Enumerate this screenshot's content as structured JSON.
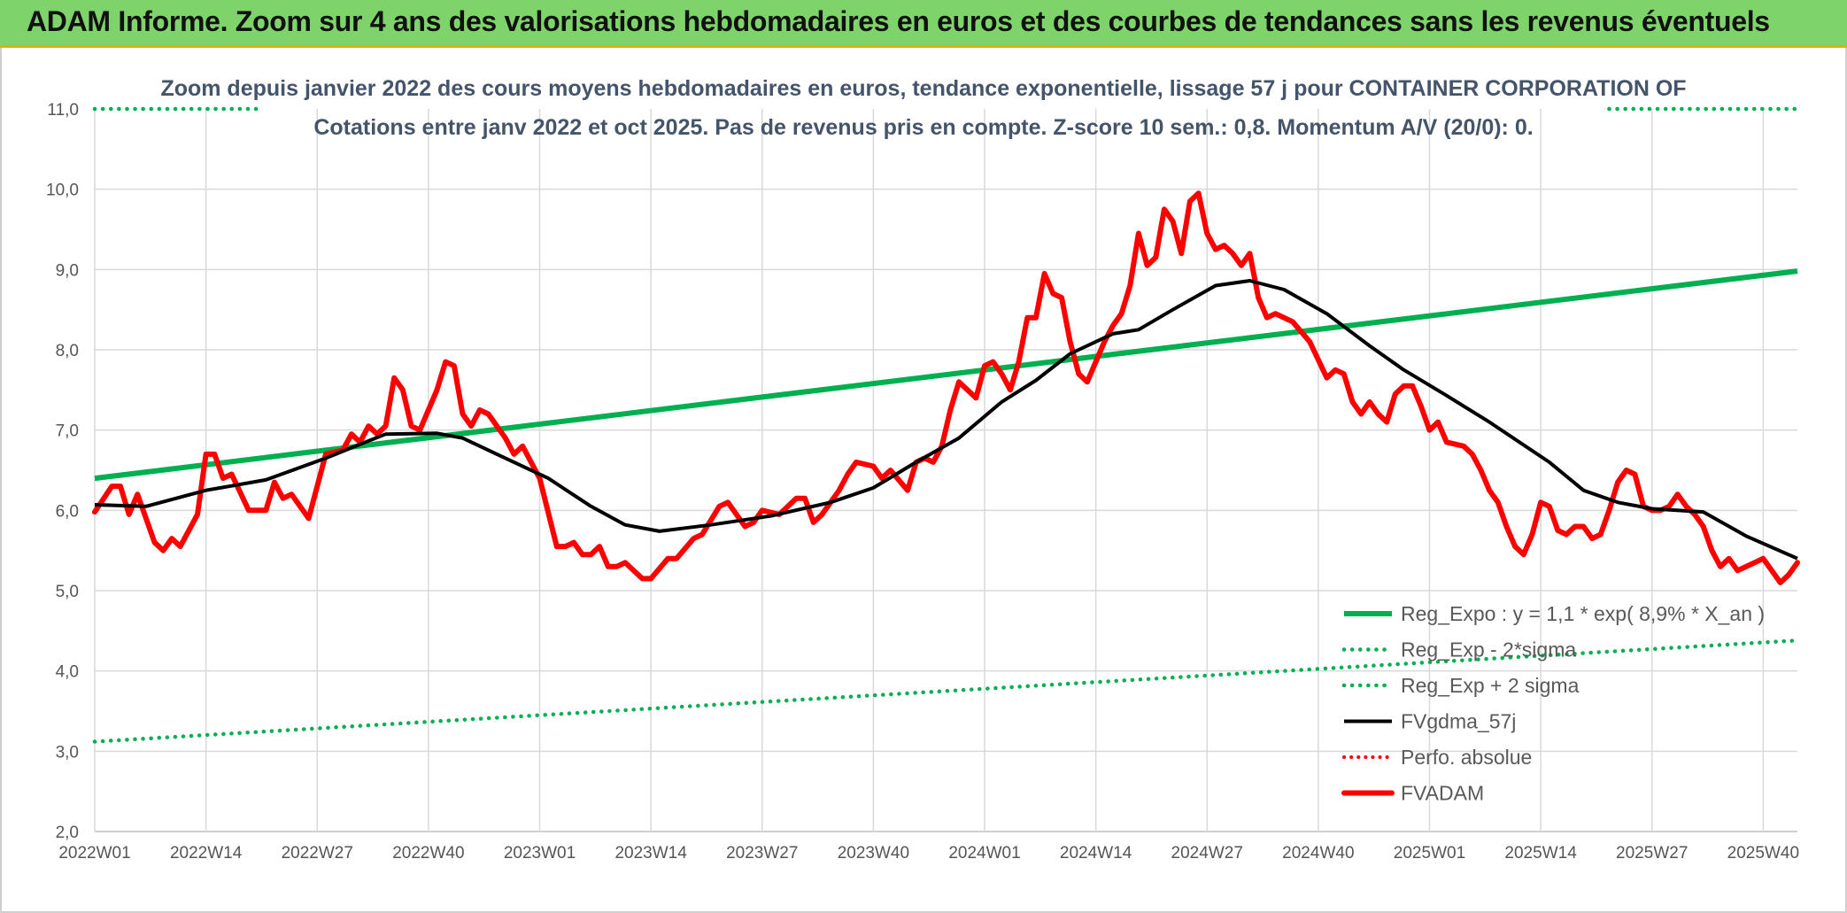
{
  "banner": {
    "title": "ADAM Informe. Zoom sur 4 ans des valorisations hebdomadaires en euros et des courbes de tendances sans les revenus éventuels"
  },
  "chart_data": {
    "type": "line",
    "title": "Zoom depuis janvier 2022 des cours moyens hebdomadaires en euros, tendance exponentielle, lissage 57 j pour CONTAINER CORPORATION OF",
    "subtitle": "Cotations entre janv 2022 et oct 2025. Pas de revenus pris en compte. Z-score 10 sem.: 0,8. Momentum A/V (20/0): 0.",
    "ylim": [
      2.0,
      11.0
    ],
    "ytick_labels": [
      "2,0",
      "3,0",
      "4,0",
      "5,0",
      "6,0",
      "7,0",
      "8,0",
      "9,0",
      "10,0",
      "11,0"
    ],
    "xtick_labels": [
      "2022W01",
      "2022W14",
      "2022W27",
      "2022W40",
      "2023W01",
      "2023W14",
      "2023W27",
      "2023W40",
      "2024W01",
      "2024W14",
      "2024W27",
      "2024W40",
      "2025W01",
      "2025W14",
      "2025W27",
      "2025W40"
    ],
    "x_week_range": [
      0,
      199
    ],
    "x_tick_step_weeks": 13,
    "colors": {
      "green": "#00b050",
      "black": "#000000",
      "red": "#ff0000",
      "grid": "#d9d9d9"
    },
    "series": [
      {
        "name": "Reg_Expo : y = 1,1 * exp( 8,9% *  X_an )",
        "style": "solid-green",
        "points": [
          [
            0,
            6.4
          ],
          [
            199,
            8.98
          ]
        ]
      },
      {
        "name": "Reg_Exp - 2*sigma",
        "style": "dotted-green",
        "points": [
          [
            0,
            3.12
          ],
          [
            199,
            4.38
          ]
        ]
      },
      {
        "name": "Reg_Exp + 2 sigma",
        "style": "dotted-green",
        "points": [
          [
            0,
            11.0
          ],
          [
            199,
            11.0
          ]
        ]
      },
      {
        "name": "FVgdma_57j",
        "style": "solid-black",
        "points": [
          [
            0,
            6.07
          ],
          [
            6,
            6.05
          ],
          [
            13,
            6.25
          ],
          [
            20,
            6.38
          ],
          [
            27,
            6.65
          ],
          [
            30,
            6.78
          ],
          [
            34,
            6.95
          ],
          [
            40,
            6.96
          ],
          [
            43,
            6.9
          ],
          [
            47,
            6.7
          ],
          [
            53,
            6.4
          ],
          [
            58,
            6.05
          ],
          [
            62,
            5.82
          ],
          [
            66,
            5.74
          ],
          [
            72,
            5.82
          ],
          [
            79,
            5.93
          ],
          [
            86,
            6.1
          ],
          [
            91,
            6.28
          ],
          [
            96,
            6.6
          ],
          [
            101,
            6.9
          ],
          [
            106,
            7.35
          ],
          [
            110,
            7.62
          ],
          [
            114,
            7.95
          ],
          [
            119,
            8.2
          ],
          [
            122,
            8.25
          ],
          [
            126,
            8.5
          ],
          [
            131,
            8.8
          ],
          [
            135,
            8.86
          ],
          [
            139,
            8.75
          ],
          [
            144,
            8.45
          ],
          [
            149,
            8.05
          ],
          [
            153,
            7.75
          ],
          [
            158,
            7.43
          ],
          [
            163,
            7.1
          ],
          [
            170,
            6.6
          ],
          [
            174,
            6.25
          ],
          [
            178,
            6.1
          ],
          [
            182,
            6.02
          ],
          [
            188,
            5.98
          ],
          [
            193,
            5.68
          ],
          [
            199,
            5.4
          ]
        ]
      },
      {
        "name": "Perfo. absolue",
        "style": "dotted-red",
        "points": []
      },
      {
        "name": "FVADAM",
        "style": "solid-red",
        "points": [
          [
            0,
            5.98
          ],
          [
            2,
            6.3
          ],
          [
            3,
            6.3
          ],
          [
            4,
            5.95
          ],
          [
            5,
            6.2
          ],
          [
            7,
            5.6
          ],
          [
            8,
            5.5
          ],
          [
            9,
            5.65
          ],
          [
            10,
            5.55
          ],
          [
            12,
            5.95
          ],
          [
            13,
            6.7
          ],
          [
            14,
            6.7
          ],
          [
            15,
            6.4
          ],
          [
            16,
            6.45
          ],
          [
            18,
            6.0
          ],
          [
            20,
            6.0
          ],
          [
            21,
            6.35
          ],
          [
            22,
            6.15
          ],
          [
            23,
            6.2
          ],
          [
            25,
            5.9
          ],
          [
            27,
            6.7
          ],
          [
            29,
            6.75
          ],
          [
            30,
            6.95
          ],
          [
            31,
            6.85
          ],
          [
            32,
            7.05
          ],
          [
            33,
            6.95
          ],
          [
            34,
            7.05
          ],
          [
            35,
            7.65
          ],
          [
            36,
            7.5
          ],
          [
            37,
            7.05
          ],
          [
            38,
            7.0
          ],
          [
            40,
            7.5
          ],
          [
            41,
            7.85
          ],
          [
            42,
            7.8
          ],
          [
            43,
            7.2
          ],
          [
            44,
            7.05
          ],
          [
            45,
            7.25
          ],
          [
            46,
            7.2
          ],
          [
            48,
            6.9
          ],
          [
            49,
            6.7
          ],
          [
            50,
            6.8
          ],
          [
            52,
            6.4
          ],
          [
            54,
            5.55
          ],
          [
            55,
            5.55
          ],
          [
            56,
            5.6
          ],
          [
            57,
            5.45
          ],
          [
            58,
            5.45
          ],
          [
            59,
            5.55
          ],
          [
            60,
            5.3
          ],
          [
            61,
            5.3
          ],
          [
            62,
            5.35
          ],
          [
            64,
            5.15
          ],
          [
            65,
            5.15
          ],
          [
            67,
            5.4
          ],
          [
            68,
            5.4
          ],
          [
            70,
            5.65
          ],
          [
            71,
            5.7
          ],
          [
            73,
            6.05
          ],
          [
            74,
            6.1
          ],
          [
            76,
            5.8
          ],
          [
            77,
            5.85
          ],
          [
            78,
            6.0
          ],
          [
            80,
            5.95
          ],
          [
            82,
            6.15
          ],
          [
            83,
            6.15
          ],
          [
            84,
            5.85
          ],
          [
            85,
            5.95
          ],
          [
            87,
            6.25
          ],
          [
            88,
            6.45
          ],
          [
            89,
            6.6
          ],
          [
            91,
            6.55
          ],
          [
            92,
            6.4
          ],
          [
            93,
            6.5
          ],
          [
            95,
            6.25
          ],
          [
            96,
            6.6
          ],
          [
            97,
            6.65
          ],
          [
            98,
            6.6
          ],
          [
            99,
            6.8
          ],
          [
            100,
            7.25
          ],
          [
            101,
            7.6
          ],
          [
            102,
            7.5
          ],
          [
            103,
            7.4
          ],
          [
            104,
            7.8
          ],
          [
            105,
            7.85
          ],
          [
            106,
            7.7
          ],
          [
            107,
            7.5
          ],
          [
            108,
            7.85
          ],
          [
            109,
            8.4
          ],
          [
            110,
            8.4
          ],
          [
            111,
            8.95
          ],
          [
            112,
            8.7
          ],
          [
            113,
            8.65
          ],
          [
            114,
            8.1
          ],
          [
            115,
            7.7
          ],
          [
            116,
            7.6
          ],
          [
            117,
            7.85
          ],
          [
            118,
            8.1
          ],
          [
            119,
            8.3
          ],
          [
            120,
            8.45
          ],
          [
            121,
            8.8
          ],
          [
            122,
            9.45
          ],
          [
            123,
            9.05
          ],
          [
            124,
            9.15
          ],
          [
            125,
            9.75
          ],
          [
            126,
            9.6
          ],
          [
            127,
            9.2
          ],
          [
            128,
            9.85
          ],
          [
            129,
            9.95
          ],
          [
            130,
            9.45
          ],
          [
            131,
            9.25
          ],
          [
            132,
            9.3
          ],
          [
            133,
            9.2
          ],
          [
            134,
            9.05
          ],
          [
            135,
            9.2
          ],
          [
            136,
            8.65
          ],
          [
            137,
            8.4
          ],
          [
            138,
            8.45
          ],
          [
            140,
            8.35
          ],
          [
            142,
            8.1
          ],
          [
            144,
            7.65
          ],
          [
            145,
            7.75
          ],
          [
            146,
            7.7
          ],
          [
            147,
            7.35
          ],
          [
            148,
            7.2
          ],
          [
            149,
            7.35
          ],
          [
            150,
            7.2
          ],
          [
            151,
            7.1
          ],
          [
            152,
            7.45
          ],
          [
            153,
            7.55
          ],
          [
            154,
            7.55
          ],
          [
            155,
            7.3
          ],
          [
            156,
            7.0
          ],
          [
            157,
            7.1
          ],
          [
            158,
            6.85
          ],
          [
            160,
            6.8
          ],
          [
            161,
            6.7
          ],
          [
            162,
            6.5
          ],
          [
            163,
            6.25
          ],
          [
            164,
            6.1
          ],
          [
            165,
            5.8
          ],
          [
            166,
            5.55
          ],
          [
            167,
            5.45
          ],
          [
            168,
            5.7
          ],
          [
            169,
            6.1
          ],
          [
            170,
            6.05
          ],
          [
            171,
            5.75
          ],
          [
            172,
            5.7
          ],
          [
            173,
            5.8
          ],
          [
            174,
            5.8
          ],
          [
            175,
            5.65
          ],
          [
            176,
            5.7
          ],
          [
            177,
            6.0
          ],
          [
            178,
            6.35
          ],
          [
            179,
            6.5
          ],
          [
            180,
            6.45
          ],
          [
            181,
            6.05
          ],
          [
            182,
            6.0
          ],
          [
            183,
            6.0
          ],
          [
            184,
            6.05
          ],
          [
            185,
            6.2
          ],
          [
            186,
            6.05
          ],
          [
            187,
            5.95
          ],
          [
            188,
            5.8
          ],
          [
            189,
            5.5
          ],
          [
            190,
            5.3
          ],
          [
            191,
            5.4
          ],
          [
            192,
            5.25
          ],
          [
            193,
            5.3
          ],
          [
            194,
            5.35
          ],
          [
            195,
            5.4
          ],
          [
            196,
            5.25
          ],
          [
            197,
            5.1
          ],
          [
            198,
            5.2
          ],
          [
            199,
            5.35
          ]
        ]
      }
    ],
    "legend": {
      "position": "bottom-right"
    }
  }
}
